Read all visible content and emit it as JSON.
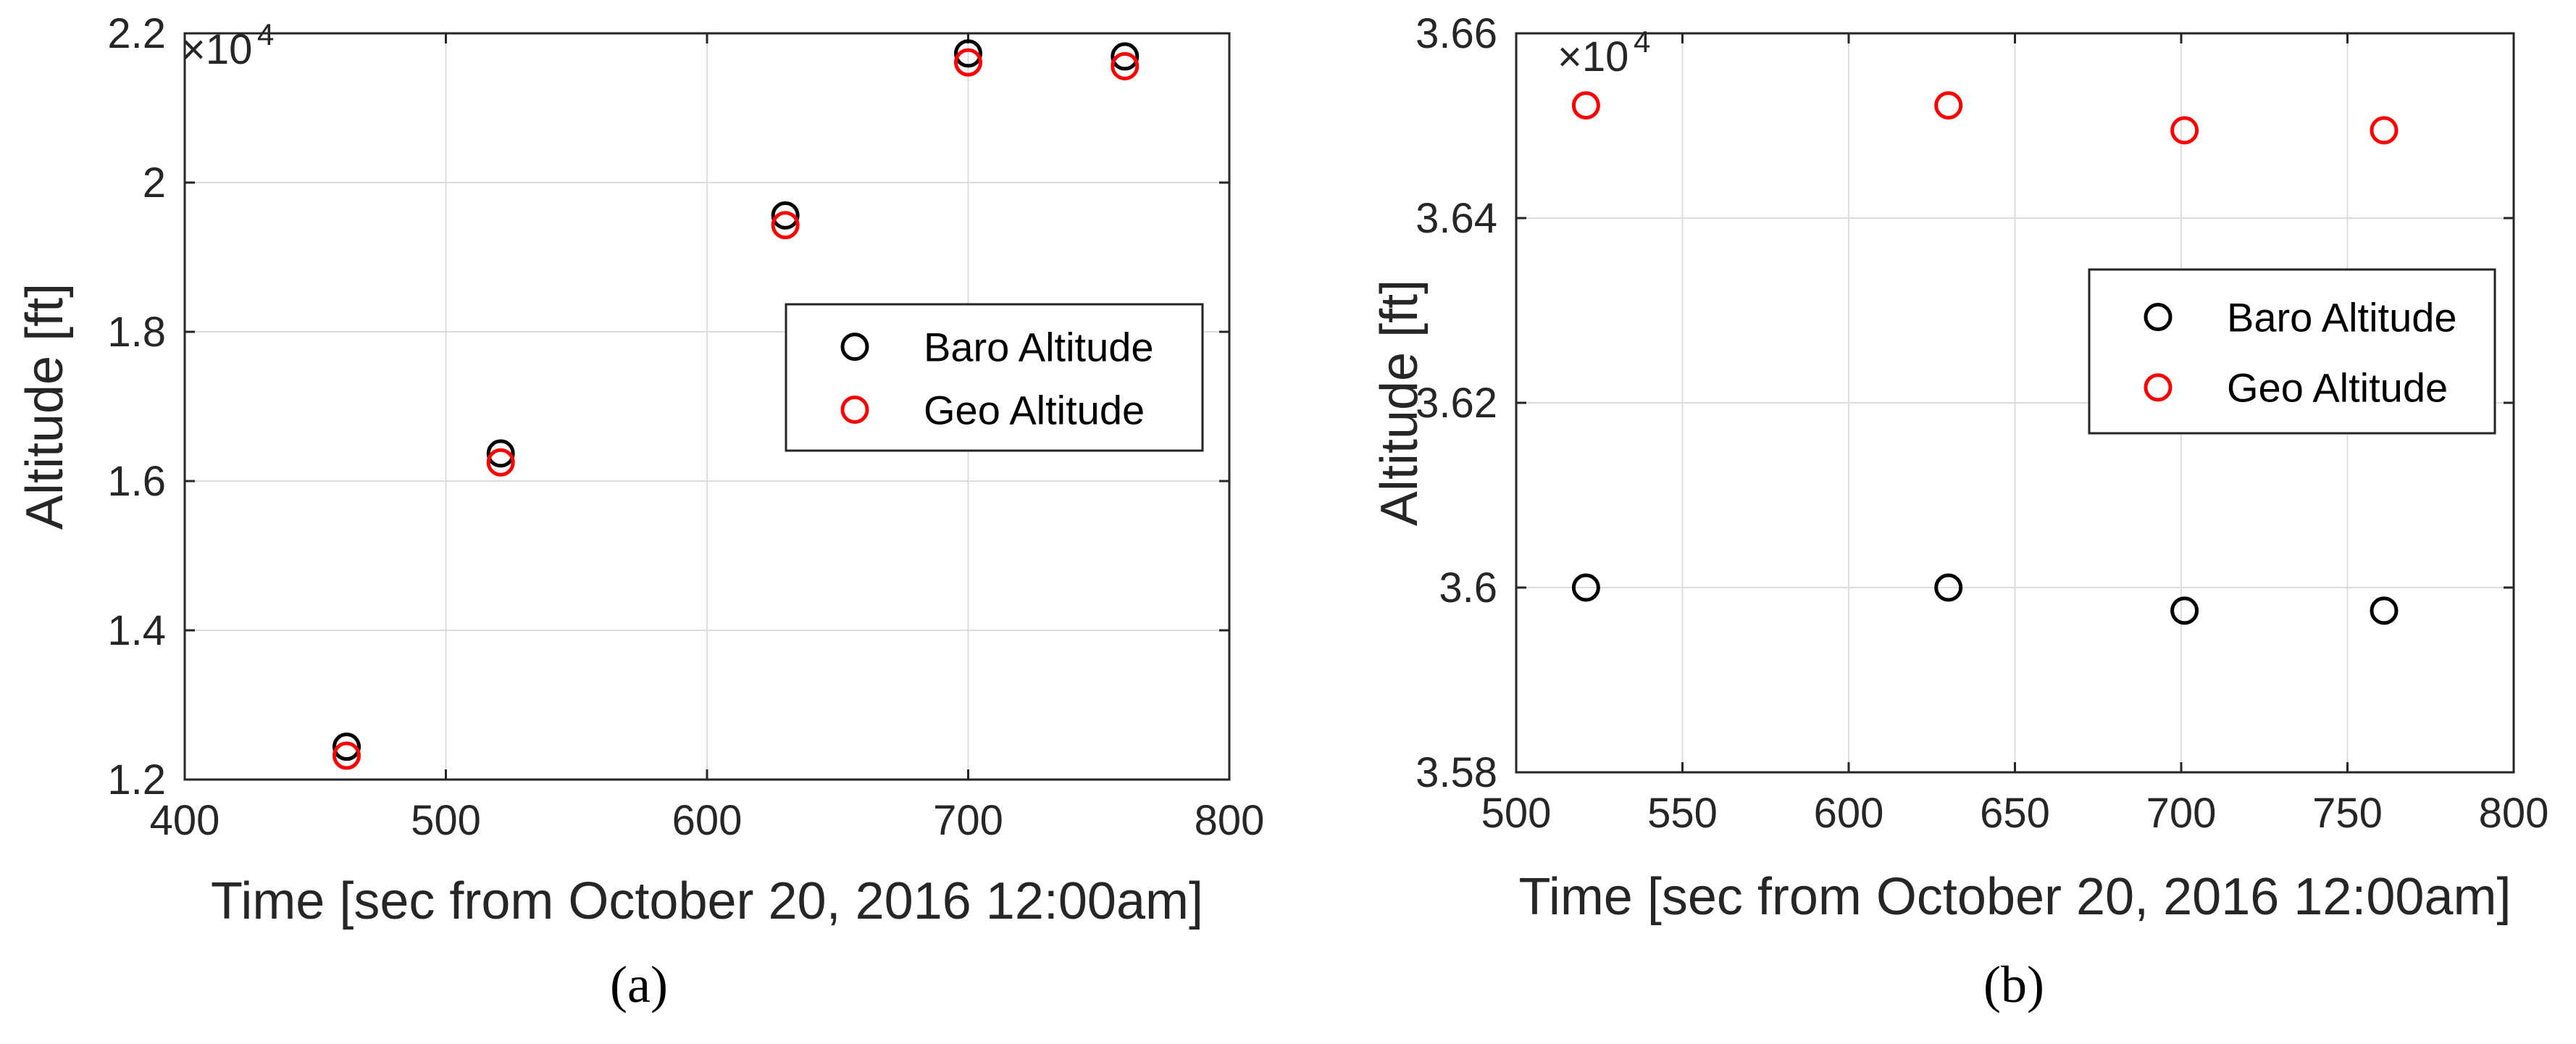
{
  "chart_data": [
    {
      "type": "scatter",
      "panel_label": "(a)",
      "xlabel": "Time [sec from October 20, 2016 12:00am]",
      "ylabel": "Altitude [ft]",
      "y_multiplier_label": "×10",
      "y_multiplier_exponent": "4",
      "xlim": [
        400,
        800
      ],
      "ylim": [
        1.2,
        2.2
      ],
      "xticks": [
        "400",
        "500",
        "600",
        "700",
        "800"
      ],
      "yticks": [
        "1.2",
        "1.4",
        "1.6",
        "1.8",
        "2",
        "2.2"
      ],
      "grid": true,
      "legend_position": "right",
      "series": [
        {
          "name": "Baro Altitude",
          "color": "#000000",
          "x": [
            462,
            521,
            630,
            700,
            760
          ],
          "y": [
            1.244,
            1.637,
            1.956,
            2.173,
            2.169
          ]
        },
        {
          "name": "Geo Altitude",
          "color": "#ff0000",
          "x": [
            462,
            521,
            630,
            700,
            760
          ],
          "y": [
            1.232,
            1.625,
            1.943,
            2.161,
            2.156
          ]
        }
      ]
    },
    {
      "type": "scatter",
      "panel_label": "(b)",
      "xlabel": "Time [sec from October 20, 2016 12:00am]",
      "ylabel": "Altitude [ft]",
      "y_multiplier_label": "×10",
      "y_multiplier_exponent": "4",
      "xlim": [
        500,
        800
      ],
      "ylim": [
        3.58,
        3.66
      ],
      "xticks": [
        "500",
        "550",
        "600",
        "650",
        "700",
        "750",
        "800"
      ],
      "yticks": [
        "3.58",
        "3.6",
        "3.62",
        "3.64",
        "3.66"
      ],
      "grid": true,
      "legend_position": "upper right",
      "series": [
        {
          "name": "Baro Altitude",
          "color": "#000000",
          "x": [
            521,
            630,
            701,
            761
          ],
          "y": [
            3.6,
            3.6,
            3.5975,
            3.5975
          ]
        },
        {
          "name": "Geo Altitude",
          "color": "#ff0000",
          "x": [
            521,
            630,
            701,
            761
          ],
          "y": [
            3.6522,
            3.6522,
            3.6495,
            3.6495
          ]
        }
      ]
    }
  ]
}
